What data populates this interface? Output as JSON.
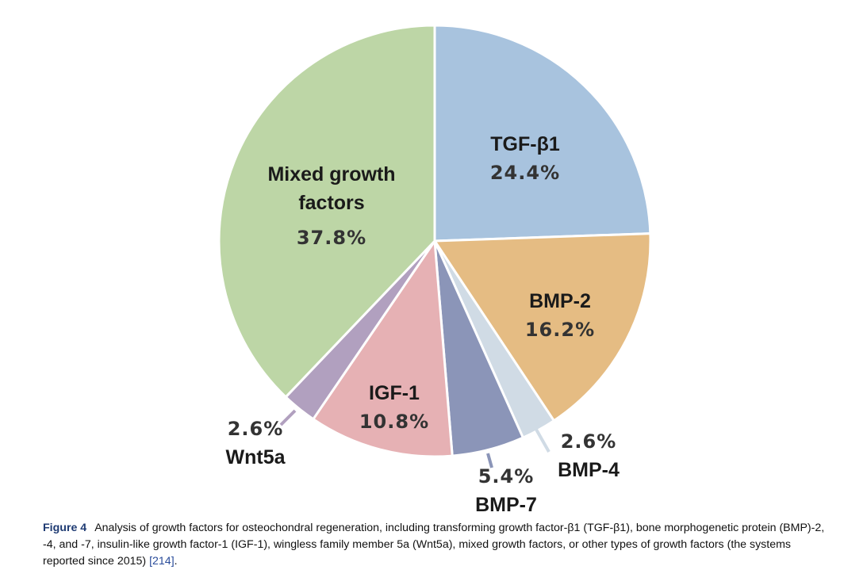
{
  "chart_data": {
    "type": "pie",
    "slices": [
      {
        "name": "TGF-β1",
        "value": 24.4,
        "value_label": "24.4%",
        "color": "#a8c3de",
        "label_lines": [
          "TGF-β1"
        ]
      },
      {
        "name": "BMP-2",
        "value": 16.2,
        "value_label": "16.2%",
        "color": "#e5bc83",
        "label_lines": [
          "BMP-2"
        ]
      },
      {
        "name": "BMP-4",
        "value": 2.6,
        "value_label": "2.6%",
        "color": "#d0dbe5",
        "label_lines": [
          "BMP-4"
        ]
      },
      {
        "name": "BMP-7",
        "value": 5.4,
        "value_label": "5.4%",
        "color": "#8b95b8",
        "label_lines": [
          "BMP-7"
        ]
      },
      {
        "name": "IGF-1",
        "value": 10.8,
        "value_label": "10.8%",
        "color": "#e6b1b4",
        "label_lines": [
          "IGF-1"
        ]
      },
      {
        "name": "Wnt5a",
        "value": 2.6,
        "value_label": "2.6%",
        "color": "#b1a0bf",
        "label_lines": [
          "Wnt5a"
        ]
      },
      {
        "name": "Mixed growth factors",
        "value": 37.8,
        "value_label": "37.8%",
        "color": "#bdd6a6",
        "label_lines": [
          "Mixed growth",
          "factors"
        ]
      }
    ]
  },
  "caption": {
    "figure_label": "Figure 4",
    "text": "Analysis of growth factors for osteochondral regeneration, including transforming growth factor-β1 (TGF-β1), bone morphogenetic protein (BMP)-2, -4, and -7, insulin-like growth factor-1 (IGF-1), wingless family member 5a (Wnt5a), mixed growth factors, or other types of growth factors (the systems reported since 2015) ",
    "reference": "[214]",
    "end": "."
  }
}
